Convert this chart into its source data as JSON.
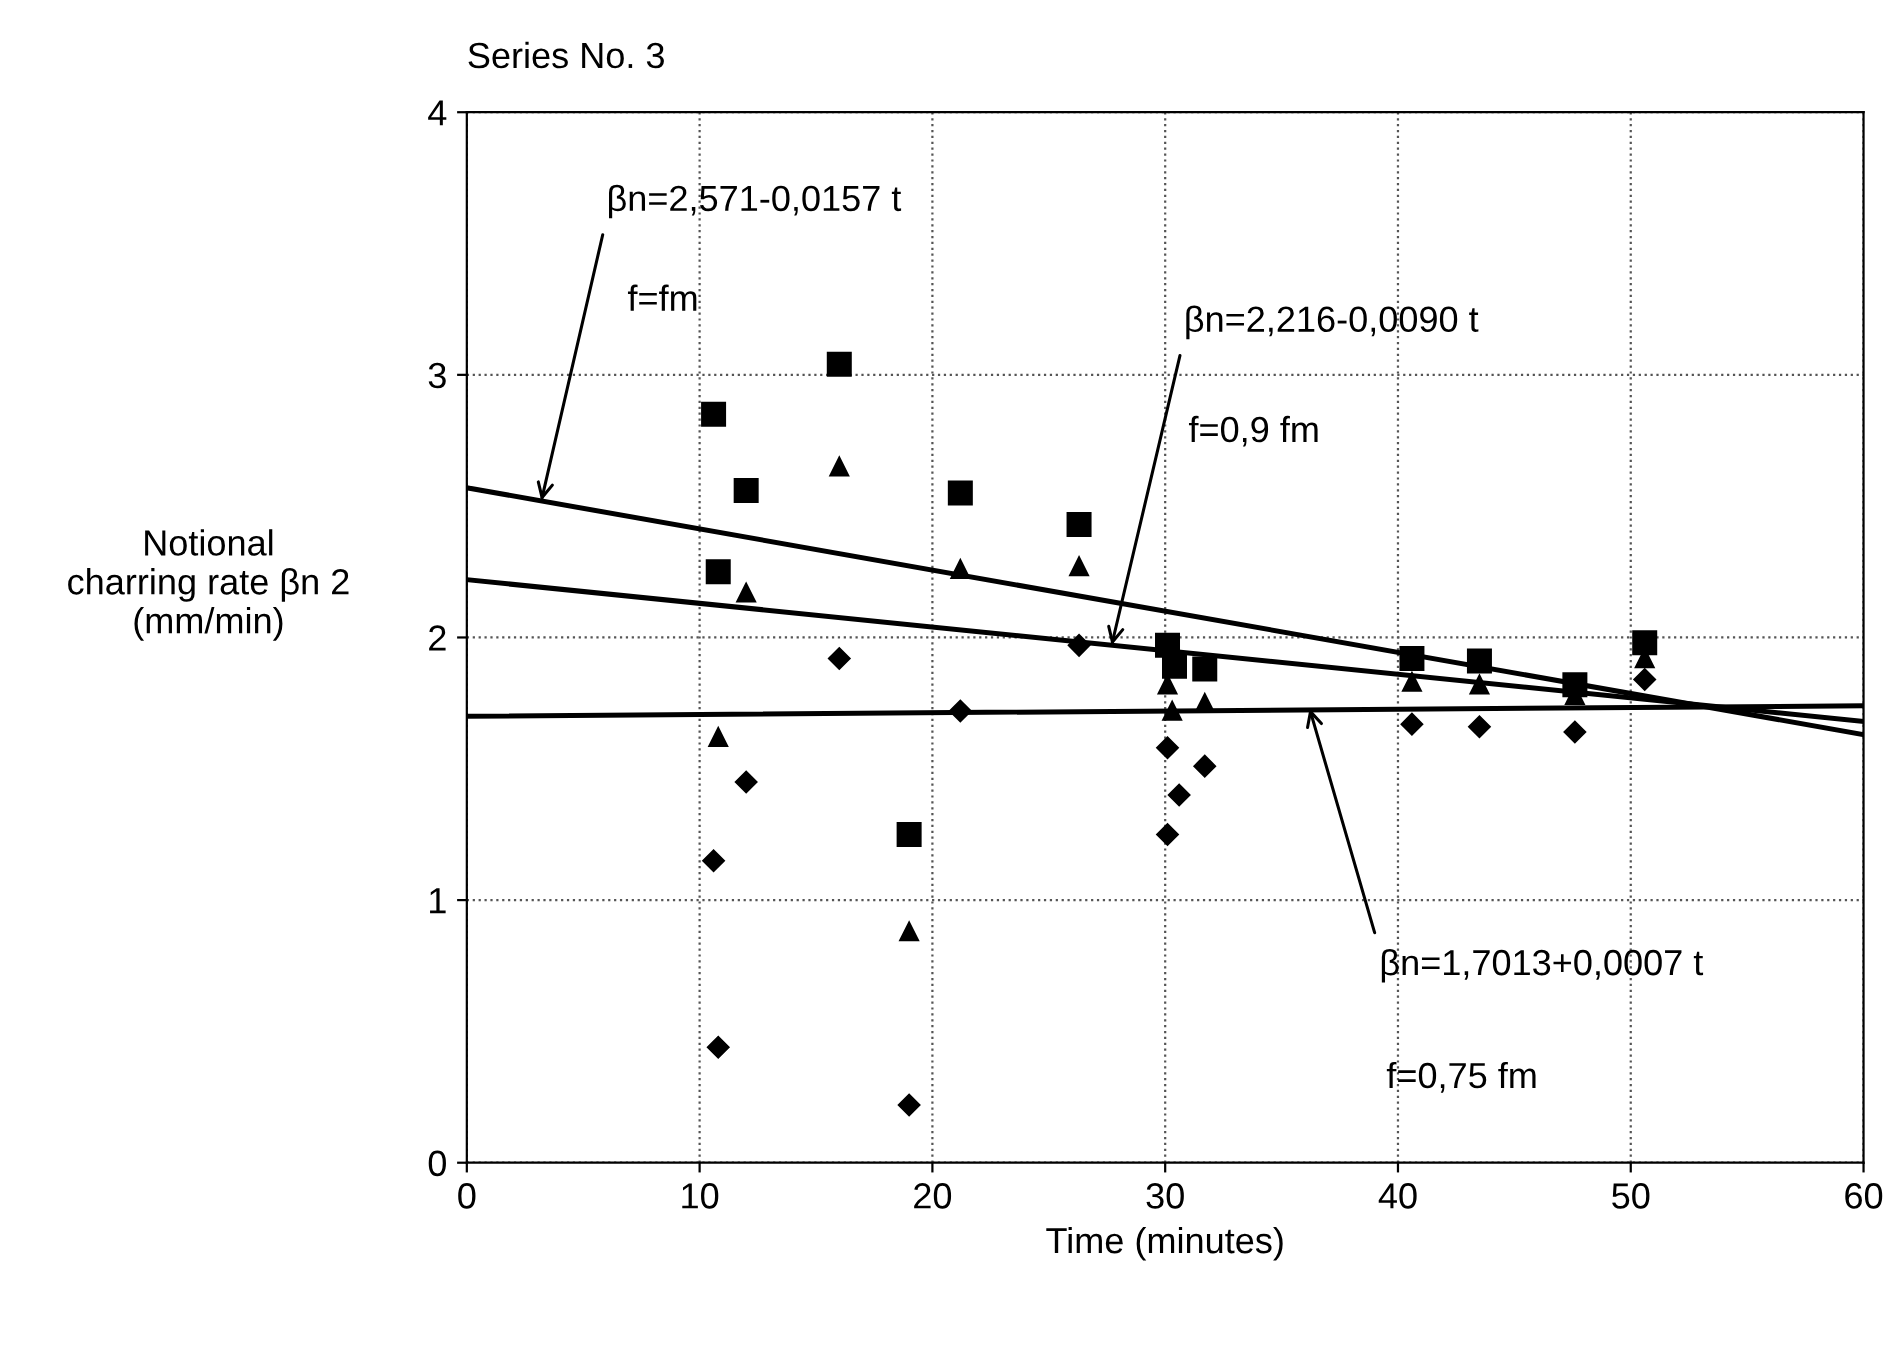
{
  "chart_data": {
    "type": "scatter",
    "title": "Series No. 3",
    "xlabel": "Time (minutes)",
    "ylabel": "Notional\ncharring rate βn 2\n(mm/min)",
    "xlim": [
      0,
      60
    ],
    "xticks": [
      0,
      10,
      20,
      30,
      40,
      50,
      60
    ],
    "ylim": [
      0,
      4
    ],
    "yticks": [
      0,
      1,
      2,
      3,
      4
    ],
    "grid": true,
    "series": [
      {
        "marker": "square",
        "color": "#000000",
        "x": [
          10.6,
          10.8,
          12.0,
          16.0,
          19.0,
          21.2,
          26.3,
          30.1,
          30.4,
          31.7,
          40.6,
          43.5,
          47.6,
          50.6
        ],
        "values": [
          2.85,
          2.25,
          2.56,
          3.04,
          1.25,
          2.55,
          2.43,
          1.97,
          1.89,
          1.88,
          1.92,
          1.91,
          1.82,
          1.98
        ]
      },
      {
        "marker": "triangle",
        "color": "#000000",
        "x": [
          10.8,
          12.0,
          16.0,
          19.0,
          21.2,
          26.3,
          30.1,
          30.3,
          31.7,
          40.6,
          43.5,
          47.6,
          50.6
        ],
        "values": [
          1.62,
          2.17,
          2.65,
          0.88,
          2.26,
          2.27,
          1.82,
          1.72,
          1.75,
          1.83,
          1.82,
          1.78,
          1.92
        ]
      },
      {
        "marker": "diamond",
        "color": "#000000",
        "x": [
          10.6,
          10.8,
          12.0,
          16.0,
          19.0,
          21.2,
          26.3,
          30.1,
          30.1,
          30.6,
          31.7,
          40.6,
          43.5,
          47.6,
          50.6
        ],
        "values": [
          1.15,
          0.44,
          1.45,
          1.92,
          0.22,
          1.72,
          1.97,
          1.58,
          1.25,
          1.4,
          1.51,
          1.67,
          1.66,
          1.64,
          1.84
        ]
      },
      {
        "type": "line",
        "color": "#000000",
        "x": [
          0,
          60
        ],
        "values": [
          2.57,
          1.63
        ]
      },
      {
        "type": "line",
        "color": "#000000",
        "x": [
          0,
          60
        ],
        "values": [
          2.22,
          1.68
        ]
      },
      {
        "type": "line",
        "color": "#000000",
        "x": [
          0,
          60
        ],
        "values": [
          1.7,
          1.74
        ]
      }
    ],
    "annotations": [
      {
        "text": "βn=2,571-0,0157 t",
        "x": 3.2,
        "y": 2.52
      },
      "f=fm",
      {
        "text": "βn=2,216-0,0090 t",
        "x": 27.7,
        "y": 1.97
      },
      "f=0,9 fm",
      {
        "text": "βn=1,7013+0,0007 t",
        "x": 36.2,
        "y": 1.73
      },
      "f=0,75 fm"
    ]
  }
}
